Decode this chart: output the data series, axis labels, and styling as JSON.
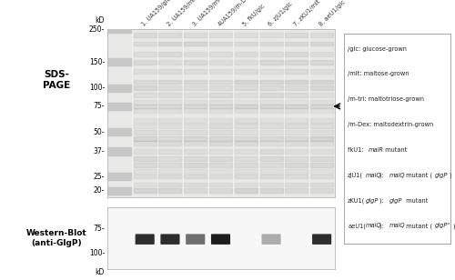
{
  "lane_labels": [
    "1. UA159/glc",
    "2. UA159/mlt",
    "3. UA159/m-tri",
    "4UA159/m-Dex",
    "5. fkU/glc",
    "6. zJU1/glc",
    "7. zKU1/mlt",
    "8. aeU1/glc"
  ],
  "mw_markers_sds": [
    250,
    150,
    100,
    75,
    50,
    37,
    25,
    20
  ],
  "mw_markers_wb": [
    100,
    75
  ],
  "sds_label": "SDS-\nPAGE",
  "wb_label": "Western-Blot\n(anti-GlgP)",
  "num_lanes": 8,
  "gel_color": [
    0.91,
    0.91,
    0.9
  ],
  "marker_lane_color": [
    0.78,
    0.78,
    0.78
  ],
  "wb_band_lanes": [
    1,
    2,
    3,
    4,
    6,
    8
  ],
  "wb_band_intensities": [
    0.82,
    0.82,
    0.55,
    0.88,
    0.3,
    0.82
  ],
  "legend_lines_plain": [
    "/glc: glucose-grown",
    "/mlt: maltose-grown",
    "/m-tri: maltotriose-grown",
    "/m-Dex: maltodextrin-grown"
  ]
}
